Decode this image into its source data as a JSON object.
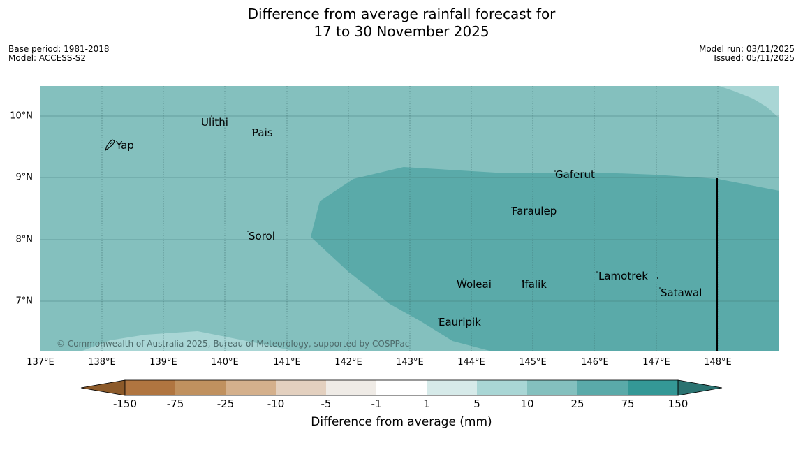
{
  "title": {
    "line1": "Difference from average rainfall forecast for",
    "line2": "17 to 30 November 2025"
  },
  "meta": {
    "base_period": "Base period: 1981-2018",
    "model": "Model: ACCESS-S2",
    "model_run": "Model run: 03/11/2025",
    "issued": "Issued: 05/11/2025"
  },
  "map": {
    "lon_range": [
      137,
      149
    ],
    "lat_range": [
      6.2,
      10.5
    ],
    "lon_ticks": [
      "137°E",
      "138°E",
      "139°E",
      "140°E",
      "141°E",
      "142°E",
      "143°E",
      "144°E",
      "145°E",
      "146°E",
      "147°E",
      "148°E"
    ],
    "lat_ticks": [
      "10°N",
      "9°N",
      "8°N",
      "7°N"
    ],
    "places": [
      {
        "name": "Yap",
        "lon": 138.25,
        "lat": 9.5
      },
      {
        "name": "Ulithi",
        "lon": 139.6,
        "lat": 9.88
      },
      {
        "name": "Pais",
        "lon": 140.4,
        "lat": 9.72
      },
      {
        "name": "Gaferut",
        "lon": 145.3,
        "lat": 9.03
      },
      {
        "name": "Faraulep",
        "lon": 144.7,
        "lat": 8.44
      },
      {
        "name": "Sorol",
        "lon": 140.35,
        "lat": 8.05
      },
      {
        "name": "Woleai",
        "lon": 143.75,
        "lat": 7.26
      },
      {
        "name": "Ifalik",
        "lon": 144.7,
        "lat": 7.26
      },
      {
        "name": "Lamotrek",
        "lon": 146.05,
        "lat": 7.4
      },
      {
        "name": "Satawal",
        "lon": 147.05,
        "lat": 7.13
      },
      {
        "name": "Eauripik",
        "lon": 143.45,
        "lat": 6.66
      }
    ],
    "copyright": "© Commonwealth of Australia 2025, Bureau of Meteorology, supported by COSPPac",
    "boundary_line_lon": 148.0
  },
  "colorbar": {
    "ticks": [
      "-150",
      "-75",
      "-25",
      "-10",
      "-5",
      "-1",
      "1",
      "5",
      "10",
      "25",
      "75",
      "150"
    ],
    "colors": [
      "#8c5a2a",
      "#b07540",
      "#c0915f",
      "#d4b08c",
      "#e3d0bf",
      "#efebe6",
      "#ffffff",
      "#d6eae9",
      "#a9d6d5",
      "#84c0be",
      "#5aaaa9",
      "#349896",
      "#2b7371"
    ],
    "label": "Difference from average (mm)"
  }
}
